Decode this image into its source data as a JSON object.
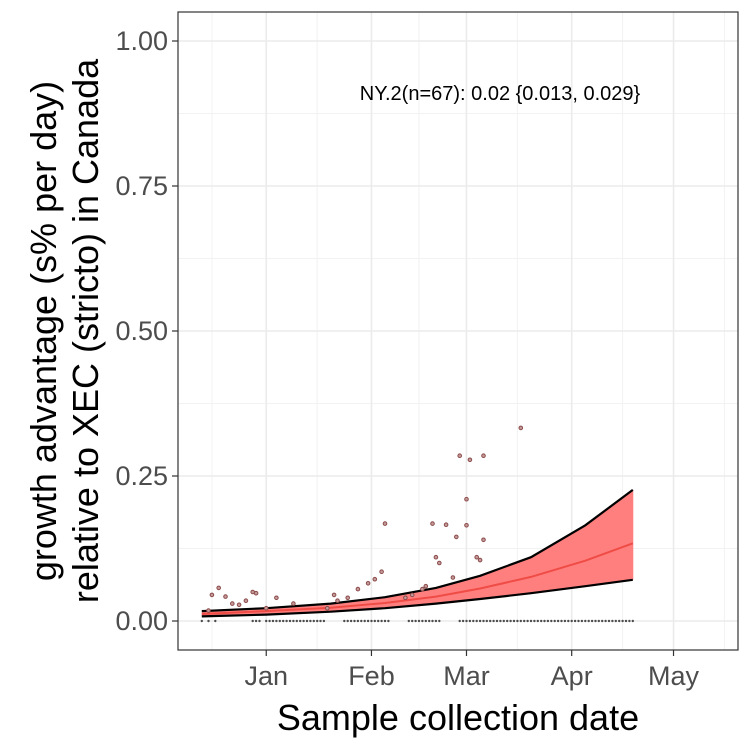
{
  "chart_data": {
    "type": "line",
    "annotation": "NY.2(n=67): 0.02 {0.013, 0.029}",
    "xlabel": "Sample collection date",
    "ylabel_line1": "growth advantage (s% per day)",
    "ylabel_line2": "relative to XEC (stricto) in Canada",
    "xlim": [
      "2024-12-06",
      "2025-05-20"
    ],
    "ylim": [
      -0.05,
      1.05
    ],
    "x_ticks": [
      {
        "date": "2025-01-01",
        "label": "Jan"
      },
      {
        "date": "2025-02-01",
        "label": "Feb"
      },
      {
        "date": "2025-03-01",
        "label": "Mar"
      },
      {
        "date": "2025-04-01",
        "label": "Apr"
      },
      {
        "date": "2025-05-01",
        "label": "May"
      }
    ],
    "y_ticks": [
      {
        "value": 0.0,
        "label": "0.00"
      },
      {
        "value": 0.25,
        "label": "0.25"
      },
      {
        "value": 0.5,
        "label": "0.50"
      },
      {
        "value": 0.75,
        "label": "0.75"
      },
      {
        "value": 1.0,
        "label": "1.00"
      }
    ],
    "grid": true,
    "colors": {
      "fit": "#f04c46",
      "ribbon": "#ff7f7f",
      "bound": "#000000",
      "point": "#8b4a4a"
    },
    "fit": {
      "x": [
        "2024-12-13",
        "2025-01-01",
        "2025-01-20",
        "2025-02-05",
        "2025-02-20",
        "2025-03-05",
        "2025-03-20",
        "2025-04-05",
        "2025-04-19"
      ],
      "y": [
        0.012,
        0.017,
        0.023,
        0.031,
        0.042,
        0.056,
        0.076,
        0.104,
        0.134
      ],
      "lower": [
        0.008,
        0.011,
        0.016,
        0.022,
        0.03,
        0.038,
        0.048,
        0.06,
        0.071
      ],
      "upper": [
        0.017,
        0.022,
        0.03,
        0.041,
        0.057,
        0.078,
        0.11,
        0.165,
        0.226
      ]
    },
    "points": [
      {
        "x": "2024-12-15",
        "y": 0.018
      },
      {
        "x": "2024-12-16",
        "y": 0.045
      },
      {
        "x": "2024-12-18",
        "y": 0.057
      },
      {
        "x": "2024-12-20",
        "y": 0.042
      },
      {
        "x": "2024-12-22",
        "y": 0.03
      },
      {
        "x": "2024-12-24",
        "y": 0.028
      },
      {
        "x": "2024-12-26",
        "y": 0.035
      },
      {
        "x": "2024-12-28",
        "y": 0.05
      },
      {
        "x": "2024-12-29",
        "y": 0.048
      },
      {
        "x": "2025-01-01",
        "y": 0.022
      },
      {
        "x": "2025-01-04",
        "y": 0.04
      },
      {
        "x": "2025-01-09",
        "y": 0.03
      },
      {
        "x": "2025-01-19",
        "y": 0.022
      },
      {
        "x": "2025-01-21",
        "y": 0.045
      },
      {
        "x": "2025-01-22",
        "y": 0.035
      },
      {
        "x": "2025-01-25",
        "y": 0.04
      },
      {
        "x": "2025-01-28",
        "y": 0.055
      },
      {
        "x": "2025-01-31",
        "y": 0.065
      },
      {
        "x": "2025-02-02",
        "y": 0.072
      },
      {
        "x": "2025-02-04",
        "y": 0.085
      },
      {
        "x": "2025-02-05",
        "y": 0.168
      },
      {
        "x": "2025-02-11",
        "y": 0.04
      },
      {
        "x": "2025-02-13",
        "y": 0.045
      },
      {
        "x": "2025-02-16",
        "y": 0.055
      },
      {
        "x": "2025-02-17",
        "y": 0.06
      },
      {
        "x": "2025-02-19",
        "y": 0.168
      },
      {
        "x": "2025-02-20",
        "y": 0.11
      },
      {
        "x": "2025-02-21",
        "y": 0.1
      },
      {
        "x": "2025-02-23",
        "y": 0.166
      },
      {
        "x": "2025-02-25",
        "y": 0.075
      },
      {
        "x": "2025-02-26",
        "y": 0.145
      },
      {
        "x": "2025-02-27",
        "y": 0.285
      },
      {
        "x": "2025-03-01",
        "y": 0.21
      },
      {
        "x": "2025-03-01",
        "y": 0.165
      },
      {
        "x": "2025-03-02",
        "y": 0.278
      },
      {
        "x": "2025-03-04",
        "y": 0.11
      },
      {
        "x": "2025-03-05",
        "y": 0.105
      },
      {
        "x": "2025-03-06",
        "y": 0.285
      },
      {
        "x": "2025-03-06",
        "y": 0.14
      },
      {
        "x": "2025-03-17",
        "y": 0.333
      }
    ],
    "zero_points": [
      {
        "start": "2024-12-13",
        "end": "2024-12-18",
        "step": 2
      },
      {
        "start": "2024-12-28",
        "end": "2024-12-30",
        "step": 1
      },
      {
        "start": "2025-01-01",
        "end": "2025-01-15",
        "step": 1
      },
      {
        "start": "2025-01-16",
        "end": "2025-01-18",
        "step": 1
      },
      {
        "start": "2025-01-24",
        "end": "2025-02-06",
        "step": 1
      },
      {
        "start": "2025-02-12",
        "end": "2025-02-21",
        "step": 1
      },
      {
        "start": "2025-02-27",
        "end": "2025-04-19",
        "step": 1
      }
    ]
  }
}
